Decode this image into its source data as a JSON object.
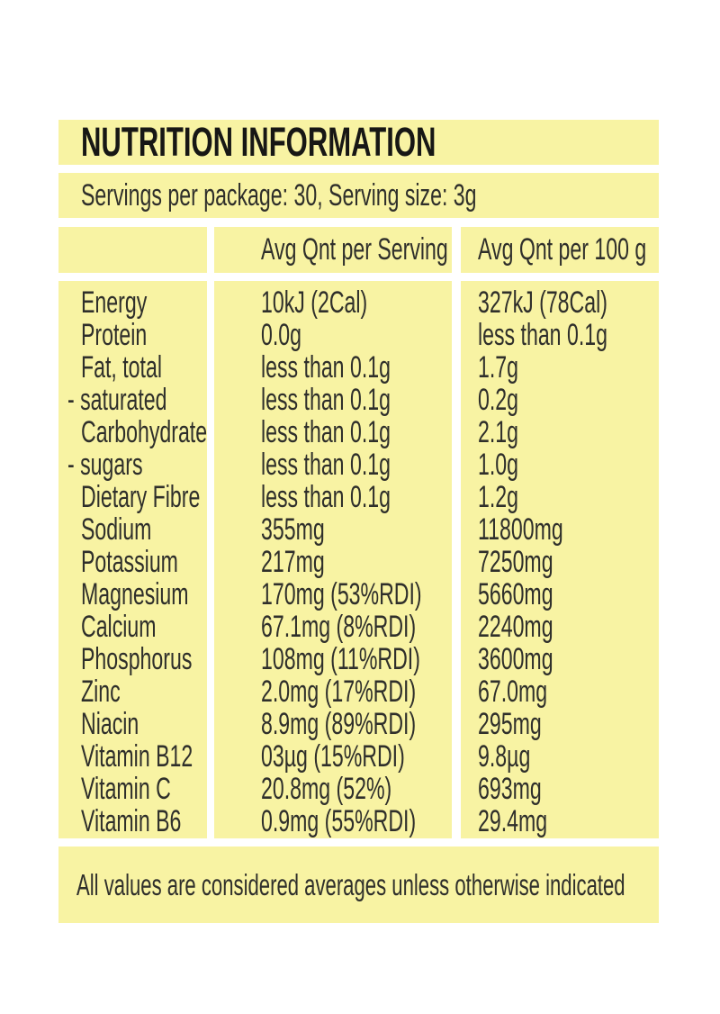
{
  "panel": {
    "title": "NUTRITION INFORMATION",
    "servings_line": "Servings per package: 30, Serving size: 3g",
    "columns": {
      "serving": "Avg Qnt per Serving",
      "per100": "Avg Qnt per 100 g"
    },
    "rows": [
      {
        "label": "Energy",
        "serving": "10kJ (2Cal)",
        "per100": "327kJ (78Cal)"
      },
      {
        "label": "Protein",
        "serving": "0.0g",
        "per100": "less than 0.1g"
      },
      {
        "label": "Fat, total",
        "serving": "less than 0.1g",
        "per100": "1.7g"
      },
      {
        "label": "- saturated",
        "serving": "less than 0.1g",
        "per100": "0.2g"
      },
      {
        "label": "Carbohydrate",
        "serving": "less than 0.1g",
        "per100": "2.1g"
      },
      {
        "label": "- sugars",
        "serving": "less than 0.1g",
        "per100": "1.0g"
      },
      {
        "label": "Dietary Fibre",
        "serving": "less than 0.1g",
        "per100": "1.2g"
      },
      {
        "label": "Sodium",
        "serving": "355mg",
        "per100": "11800mg"
      },
      {
        "label": "Potassium",
        "serving": "217mg",
        "per100": "7250mg"
      },
      {
        "label": "Magnesium",
        "serving": "170mg (53%RDI)",
        "per100": "5660mg"
      },
      {
        "label": "Calcium",
        "serving": "67.1mg (8%RDI)",
        "per100": "2240mg"
      },
      {
        "label": "Phosphorus",
        "serving": "108mg (11%RDI)",
        "per100": "3600mg"
      },
      {
        "label": "Zinc",
        "serving": "2.0mg (17%RDI)",
        "per100": "67.0mg"
      },
      {
        "label": "Niacin",
        "serving": "8.9mg (89%RDI)",
        "per100": "295mg"
      },
      {
        "label": "Vitamin B12",
        "serving": "03µg (15%RDI)",
        "per100": "9.8µg"
      },
      {
        "label": "Vitamin C",
        "serving": "20.8mg (52%)",
        "per100": "693mg"
      },
      {
        "label": "Vitamin B6",
        "serving": "0.9mg (55%RDI)",
        "per100": "29.4mg"
      }
    ],
    "footnote": "All values are considered averages unless otherwise indicated",
    "colors": {
      "panel_bg": "#F8F3A3",
      "page_bg": "#FFFFFF",
      "text": "#2F2F2B",
      "title_text": "#171715"
    }
  }
}
